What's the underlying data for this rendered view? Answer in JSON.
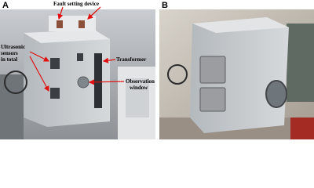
{
  "panels": [
    {
      "label": "A",
      "annotations": [
        {
          "lines": [
            "Fault setting device"
          ]
        },
        {
          "lines": [
            "Ultrasonic",
            "sensors",
            "in total"
          ]
        },
        {
          "lines": [
            "Transformer"
          ]
        },
        {
          "lines": [
            "Observation",
            "window"
          ]
        }
      ]
    },
    {
      "label": "B"
    }
  ]
}
